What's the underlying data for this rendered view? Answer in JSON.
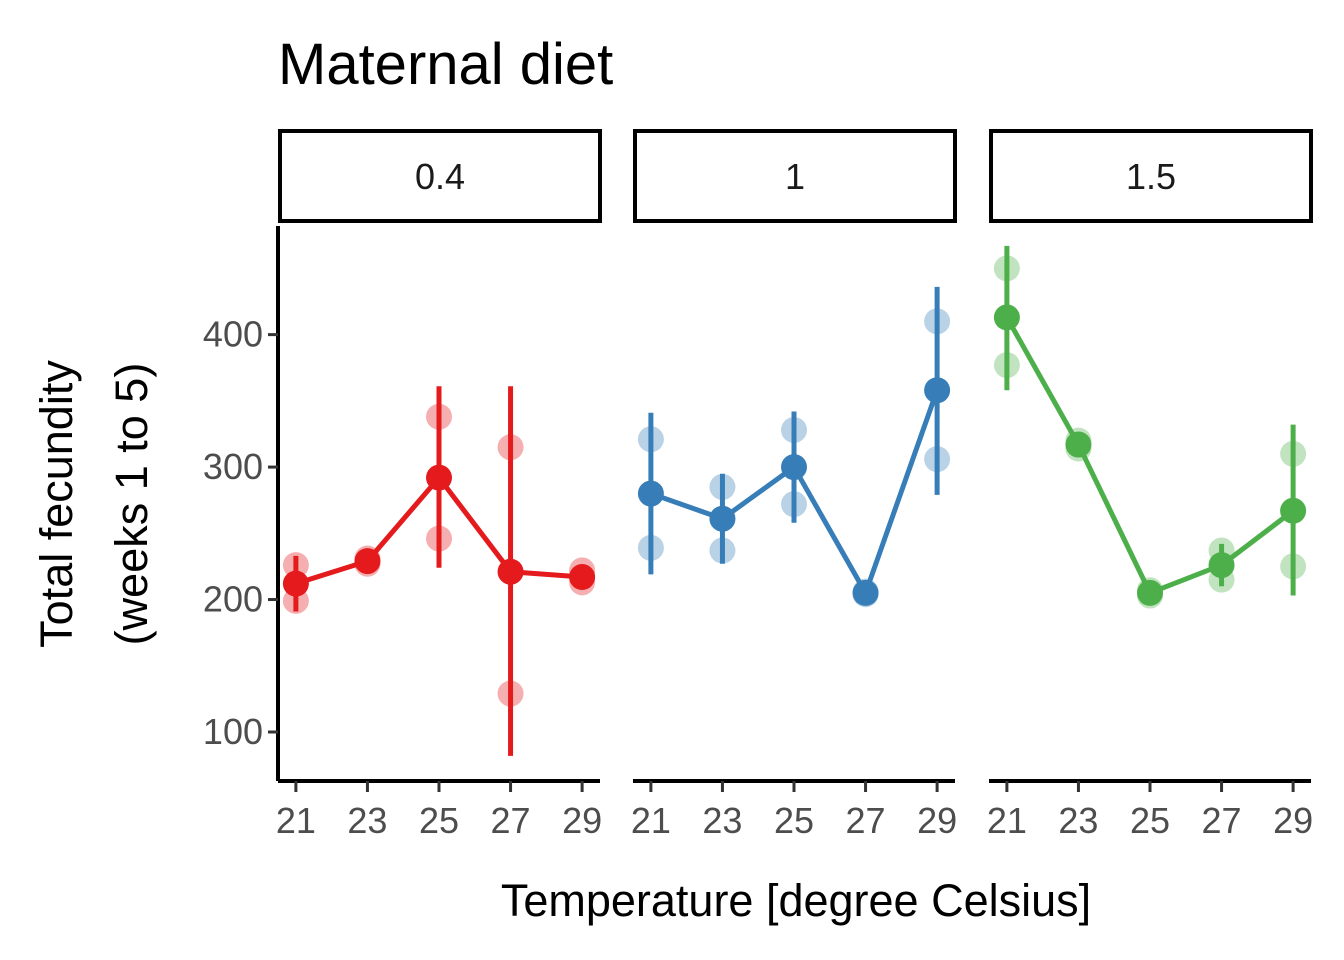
{
  "chart_data": {
    "type": "line",
    "title": "Maternal diet",
    "xlabel": "Temperature [degree Celsius]",
    "ylabel_line1": "Total fecundity",
    "ylabel_line2": "(weeks 1 to 5)",
    "x_ticks": [
      21,
      23,
      25,
      27,
      29
    ],
    "x_tick_labels": [
      "21",
      "23",
      "25",
      "27",
      "29"
    ],
    "xlim": [
      20.5,
      29.5
    ],
    "y_ticks": [
      100,
      200,
      300,
      400
    ],
    "y_tick_labels": [
      "100",
      "200",
      "300",
      "400"
    ],
    "ylim": [
      63,
      482
    ],
    "grid": false,
    "legend": "none",
    "panels": [
      {
        "label": "0.4",
        "color": "#E41A1C",
        "x": [
          21,
          23,
          25,
          27,
          29
        ],
        "mean": [
          212,
          229,
          292,
          221,
          217
        ],
        "error_low": [
          191,
          227,
          224,
          82,
          214
        ],
        "error_high": [
          233,
          231,
          361,
          361,
          220
        ],
        "raw_points": [
          [
            21,
            226
          ],
          [
            21,
            199
          ],
          [
            23,
            231
          ],
          [
            23,
            227
          ],
          [
            25,
            338
          ],
          [
            25,
            246
          ],
          [
            27,
            315
          ],
          [
            27,
            129
          ],
          [
            29,
            222
          ],
          [
            29,
            213
          ]
        ]
      },
      {
        "label": "1",
        "color": "#377EB8",
        "x": [
          21,
          23,
          25,
          27,
          29
        ],
        "mean": [
          280,
          261,
          300,
          205,
          358
        ],
        "error_low": [
          219,
          227,
          258,
          203,
          279
        ],
        "error_high": [
          341,
          295,
          342,
          207,
          436
        ],
        "raw_points": [
          [
            21,
            321
          ],
          [
            21,
            239
          ],
          [
            23,
            285
          ],
          [
            23,
            237
          ],
          [
            25,
            328
          ],
          [
            25,
            272
          ],
          [
            27,
            206
          ],
          [
            27,
            204
          ],
          [
            29,
            410
          ],
          [
            29,
            306
          ]
        ]
      },
      {
        "label": "1.5",
        "color": "#4DAF4A",
        "x": [
          21,
          23,
          25,
          27,
          29
        ],
        "mean": [
          413,
          317,
          205,
          226,
          267
        ],
        "error_low": [
          358,
          314,
          203,
          210,
          203
        ],
        "error_high": [
          467,
          320,
          207,
          242,
          332
        ],
        "raw_points": [
          [
            21,
            450
          ],
          [
            21,
            377
          ],
          [
            23,
            320
          ],
          [
            23,
            314
          ],
          [
            25,
            207
          ],
          [
            25,
            203
          ],
          [
            27,
            237
          ],
          [
            27,
            215
          ],
          [
            29,
            310
          ],
          [
            29,
            225
          ]
        ]
      }
    ]
  }
}
